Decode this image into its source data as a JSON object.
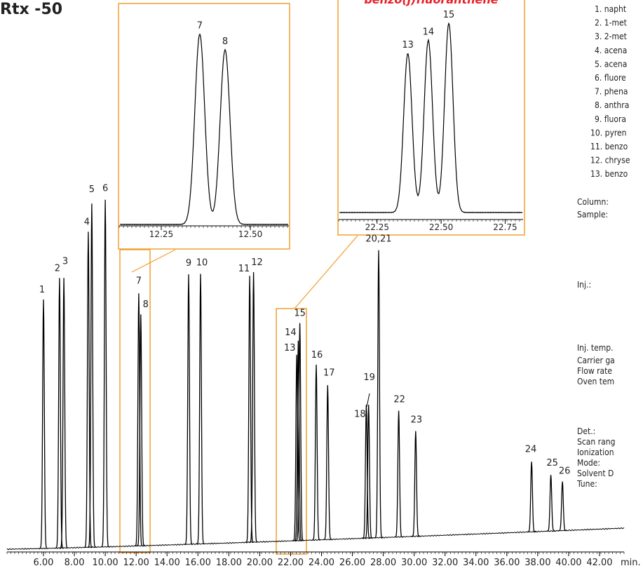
{
  "title": "Rtx -50",
  "chart_data": [
    {
      "type": "chromatogram",
      "x_label": "min.",
      "color": "#000000",
      "xlim": [
        3.64,
        43.59
      ],
      "ylim": [
        0,
        100
      ],
      "xticks": [
        {
          "value": 6,
          "label": "6.00"
        },
        {
          "value": 8,
          "label": "8.00"
        },
        {
          "value": 10,
          "label": "10.00"
        },
        {
          "value": 12,
          "label": "12.00"
        },
        {
          "value": 14,
          "label": "14.00"
        },
        {
          "value": 16,
          "label": "16.00"
        },
        {
          "value": 18,
          "label": "18.00"
        },
        {
          "value": 20,
          "label": "20.00"
        },
        {
          "value": 22,
          "label": "22.00"
        },
        {
          "value": 24,
          "label": "24.00"
        },
        {
          "value": 26,
          "label": "26.00"
        },
        {
          "value": 28,
          "label": "28.00"
        },
        {
          "value": 30,
          "label": "30.00"
        },
        {
          "value": 32,
          "label": "32.00"
        },
        {
          "value": 34,
          "label": "34.00"
        },
        {
          "value": 36,
          "label": "36.00"
        },
        {
          "value": 38,
          "label": "38.00"
        },
        {
          "value": 40,
          "label": "40.00"
        },
        {
          "value": 42,
          "label": "42.00"
        }
      ],
      "peaks": [
        {
          "label": "1",
          "rt": 6.0,
          "height": 71
        },
        {
          "label": "2",
          "rt": 7.04,
          "height": 77
        },
        {
          "label": "3",
          "rt": 7.32,
          "height": 77
        },
        {
          "label": "4",
          "rt": 8.9,
          "height": 90
        },
        {
          "label": "5",
          "rt": 9.13,
          "height": 98
        },
        {
          "label": "6",
          "rt": 10.0,
          "height": 99
        },
        {
          "label": "7",
          "rt": 12.17,
          "height": 72
        },
        {
          "label": "8",
          "rt": 12.3,
          "height": 66
        },
        {
          "label": "9",
          "rt": 15.4,
          "height": 77
        },
        {
          "label": "10",
          "rt": 16.17,
          "height": 77
        },
        {
          "label": "11",
          "rt": 19.35,
          "height": 76
        },
        {
          "label": "12",
          "rt": 19.6,
          "height": 77
        },
        {
          "label": "13",
          "rt": 22.4,
          "height": 53
        },
        {
          "label": "14",
          "rt": 22.5,
          "height": 57
        },
        {
          "label": "15",
          "rt": 22.6,
          "height": 62
        },
        {
          "label": "16",
          "rt": 23.66,
          "height": 50
        },
        {
          "label": "17",
          "rt": 24.4,
          "height": 44
        },
        {
          "label": "18",
          "rt": 26.9,
          "height": 38
        },
        {
          "label": "19",
          "rt": 27.05,
          "height": 38
        },
        {
          "label": "20,21",
          "rt": 27.7,
          "height": 82
        },
        {
          "label": "22",
          "rt": 29.0,
          "height": 36
        },
        {
          "label": "23",
          "rt": 30.1,
          "height": 30
        },
        {
          "label": "24",
          "rt": 37.6,
          "height": 20
        },
        {
          "label": "25",
          "rt": 38.85,
          "height": 16
        },
        {
          "label": "26",
          "rt": 39.6,
          "height": 14
        }
      ]
    },
    {
      "type": "chromatogram",
      "color": "#000000",
      "xlim": [
        12.132,
        12.608
      ],
      "ylim": [
        0,
        100
      ],
      "xticks": [
        12.25,
        12.5
      ],
      "xtick_labels": [
        "12.25",
        "12.50"
      ],
      "peaks": [
        {
          "label": "7",
          "rt": 12.358,
          "height": 97
        },
        {
          "label": "8",
          "rt": 12.429,
          "height": 89
        }
      ]
    },
    {
      "type": "chromatogram",
      "title": "benzo(j)fluoranthene",
      "title_color": "#e8202a",
      "color": "#000000",
      "xlim": [
        22.1,
        22.82
      ],
      "ylim": [
        0,
        100
      ],
      "xticks": [
        22.25,
        22.5,
        22.75
      ],
      "xtick_labels": [
        "22.25",
        "22.50",
        "22.75"
      ],
      "peaks": [
        {
          "label": "13",
          "rt": 22.37,
          "height": 84
        },
        {
          "label": "14",
          "rt": 22.45,
          "height": 91
        },
        {
          "label": "15",
          "rt": 22.53,
          "height": 100
        }
      ]
    }
  ],
  "compounds": [
    "1. napht",
    "2. 1-met",
    "3. 2-met",
    "4. acena",
    "5. acena",
    "6. fluore",
    "7. phena",
    "8. anthra",
    "9. fluora",
    "10. pyren",
    "11. benzo",
    "12. chryse",
    "13. benzo"
  ],
  "conditions": [
    "Column:",
    "Sample:",
    "Inj.:",
    "Inj. temp.",
    "Carrier ga",
    "Flow rate",
    "Oven tem",
    "Det.:",
    "Scan rang",
    "Ionization",
    "Mode:",
    "Solvent D",
    "Tune:"
  ]
}
